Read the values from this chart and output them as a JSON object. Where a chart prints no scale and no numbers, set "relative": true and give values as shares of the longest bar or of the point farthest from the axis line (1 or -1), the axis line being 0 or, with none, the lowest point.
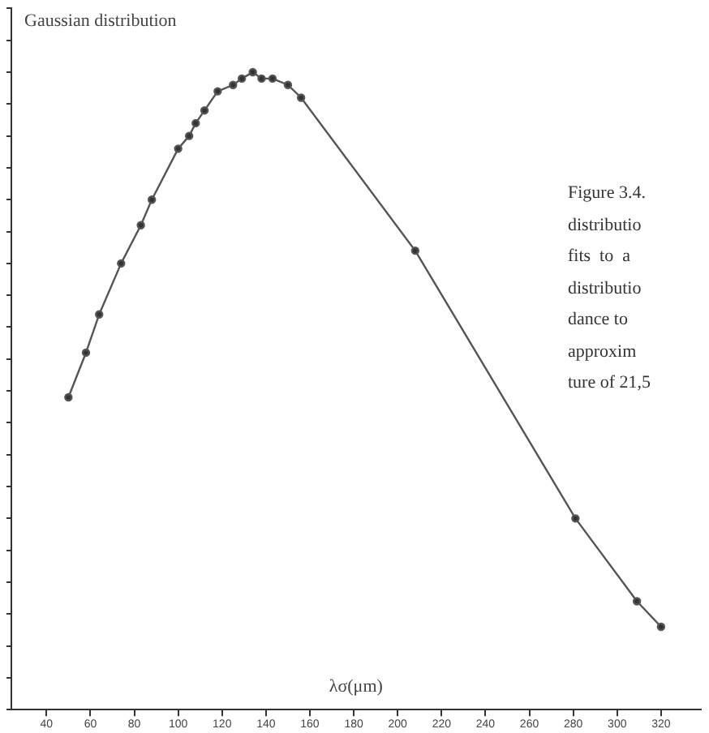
{
  "chart_data": {
    "type": "line",
    "title": "Gaussian distribution",
    "xlabel": "λσ(μm)",
    "relative": true,
    "marker": "circle",
    "line_style": "solid",
    "grid": false,
    "legend": false,
    "x": [
      50,
      58,
      64,
      74,
      83,
      88,
      100,
      105,
      108,
      112,
      118,
      125,
      129,
      134,
      138,
      143,
      150,
      156,
      208,
      281,
      309,
      320
    ],
    "values": [
      0.49,
      0.56,
      0.62,
      0.7,
      0.76,
      0.8,
      0.88,
      0.9,
      0.92,
      0.94,
      0.97,
      0.98,
      0.99,
      1,
      0.99,
      0.99,
      0.98,
      0.96,
      0.72,
      0.3,
      0.17,
      0.13
    ],
    "color": "#555555",
    "xlim": [
      24,
      338
    ],
    "xticks": [
      40,
      60,
      80,
      100,
      120,
      140,
      160,
      180,
      200,
      220,
      240,
      260,
      280,
      300,
      320
    ],
    "annotations": [
      "Figure 3.4.",
      "distributio",
      "fits  to  a",
      "distributio",
      "dance to",
      "approxim",
      "ture of 21,5"
    ]
  }
}
